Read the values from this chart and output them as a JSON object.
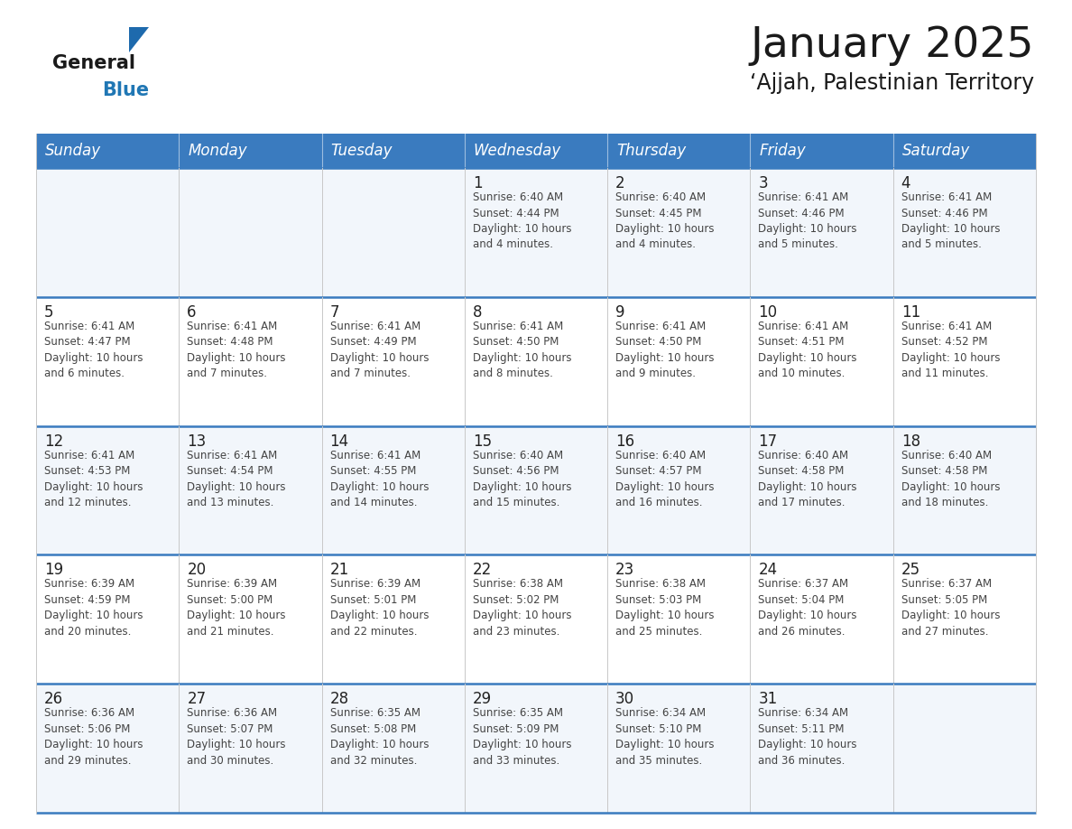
{
  "title": "January 2025",
  "subtitle": "‘Ajjah, Palestinian Territory",
  "header_bg_color": "#3a7bbf",
  "header_text_color": "#ffffff",
  "cell_bg_colors": [
    "#f2f6fb",
    "#ffffff"
  ],
  "grid_line_color": "#3a7bbf",
  "cell_border_color": "#cccccc",
  "day_headers": [
    "Sunday",
    "Monday",
    "Tuesday",
    "Wednesday",
    "Thursday",
    "Friday",
    "Saturday"
  ],
  "calendar_data": [
    [
      null,
      null,
      null,
      {
        "day": 1,
        "sunrise": "6:40 AM",
        "sunset": "4:44 PM",
        "daylight": "10 hours and 4 minutes."
      },
      {
        "day": 2,
        "sunrise": "6:40 AM",
        "sunset": "4:45 PM",
        "daylight": "10 hours and 4 minutes."
      },
      {
        "day": 3,
        "sunrise": "6:41 AM",
        "sunset": "4:46 PM",
        "daylight": "10 hours and 5 minutes."
      },
      {
        "day": 4,
        "sunrise": "6:41 AM",
        "sunset": "4:46 PM",
        "daylight": "10 hours and 5 minutes."
      }
    ],
    [
      {
        "day": 5,
        "sunrise": "6:41 AM",
        "sunset": "4:47 PM",
        "daylight": "10 hours and 6 minutes."
      },
      {
        "day": 6,
        "sunrise": "6:41 AM",
        "sunset": "4:48 PM",
        "daylight": "10 hours and 7 minutes."
      },
      {
        "day": 7,
        "sunrise": "6:41 AM",
        "sunset": "4:49 PM",
        "daylight": "10 hours and 7 minutes."
      },
      {
        "day": 8,
        "sunrise": "6:41 AM",
        "sunset": "4:50 PM",
        "daylight": "10 hours and 8 minutes."
      },
      {
        "day": 9,
        "sunrise": "6:41 AM",
        "sunset": "4:50 PM",
        "daylight": "10 hours and 9 minutes."
      },
      {
        "day": 10,
        "sunrise": "6:41 AM",
        "sunset": "4:51 PM",
        "daylight": "10 hours and 10 minutes."
      },
      {
        "day": 11,
        "sunrise": "6:41 AM",
        "sunset": "4:52 PM",
        "daylight": "10 hours and 11 minutes."
      }
    ],
    [
      {
        "day": 12,
        "sunrise": "6:41 AM",
        "sunset": "4:53 PM",
        "daylight": "10 hours and 12 minutes."
      },
      {
        "day": 13,
        "sunrise": "6:41 AM",
        "sunset": "4:54 PM",
        "daylight": "10 hours and 13 minutes."
      },
      {
        "day": 14,
        "sunrise": "6:41 AM",
        "sunset": "4:55 PM",
        "daylight": "10 hours and 14 minutes."
      },
      {
        "day": 15,
        "sunrise": "6:40 AM",
        "sunset": "4:56 PM",
        "daylight": "10 hours and 15 minutes."
      },
      {
        "day": 16,
        "sunrise": "6:40 AM",
        "sunset": "4:57 PM",
        "daylight": "10 hours and 16 minutes."
      },
      {
        "day": 17,
        "sunrise": "6:40 AM",
        "sunset": "4:58 PM",
        "daylight": "10 hours and 17 minutes."
      },
      {
        "day": 18,
        "sunrise": "6:40 AM",
        "sunset": "4:58 PM",
        "daylight": "10 hours and 18 minutes."
      }
    ],
    [
      {
        "day": 19,
        "sunrise": "6:39 AM",
        "sunset": "4:59 PM",
        "daylight": "10 hours and 20 minutes."
      },
      {
        "day": 20,
        "sunrise": "6:39 AM",
        "sunset": "5:00 PM",
        "daylight": "10 hours and 21 minutes."
      },
      {
        "day": 21,
        "sunrise": "6:39 AM",
        "sunset": "5:01 PM",
        "daylight": "10 hours and 22 minutes."
      },
      {
        "day": 22,
        "sunrise": "6:38 AM",
        "sunset": "5:02 PM",
        "daylight": "10 hours and 23 minutes."
      },
      {
        "day": 23,
        "sunrise": "6:38 AM",
        "sunset": "5:03 PM",
        "daylight": "10 hours and 25 minutes."
      },
      {
        "day": 24,
        "sunrise": "6:37 AM",
        "sunset": "5:04 PM",
        "daylight": "10 hours and 26 minutes."
      },
      {
        "day": 25,
        "sunrise": "6:37 AM",
        "sunset": "5:05 PM",
        "daylight": "10 hours and 27 minutes."
      }
    ],
    [
      {
        "day": 26,
        "sunrise": "6:36 AM",
        "sunset": "5:06 PM",
        "daylight": "10 hours and 29 minutes."
      },
      {
        "day": 27,
        "sunrise": "6:36 AM",
        "sunset": "5:07 PM",
        "daylight": "10 hours and 30 minutes."
      },
      {
        "day": 28,
        "sunrise": "6:35 AM",
        "sunset": "5:08 PM",
        "daylight": "10 hours and 32 minutes."
      },
      {
        "day": 29,
        "sunrise": "6:35 AM",
        "sunset": "5:09 PM",
        "daylight": "10 hours and 33 minutes."
      },
      {
        "day": 30,
        "sunrise": "6:34 AM",
        "sunset": "5:10 PM",
        "daylight": "10 hours and 35 minutes."
      },
      {
        "day": 31,
        "sunrise": "6:34 AM",
        "sunset": "5:11 PM",
        "daylight": "10 hours and 36 minutes."
      },
      null
    ]
  ],
  "logo_triangle_color": "#1e6aad",
  "logo_blue_color": "#2077b4",
  "title_fontsize": 34,
  "subtitle_fontsize": 17,
  "header_fontsize": 12,
  "day_number_fontsize": 12,
  "cell_text_fontsize": 8.5
}
